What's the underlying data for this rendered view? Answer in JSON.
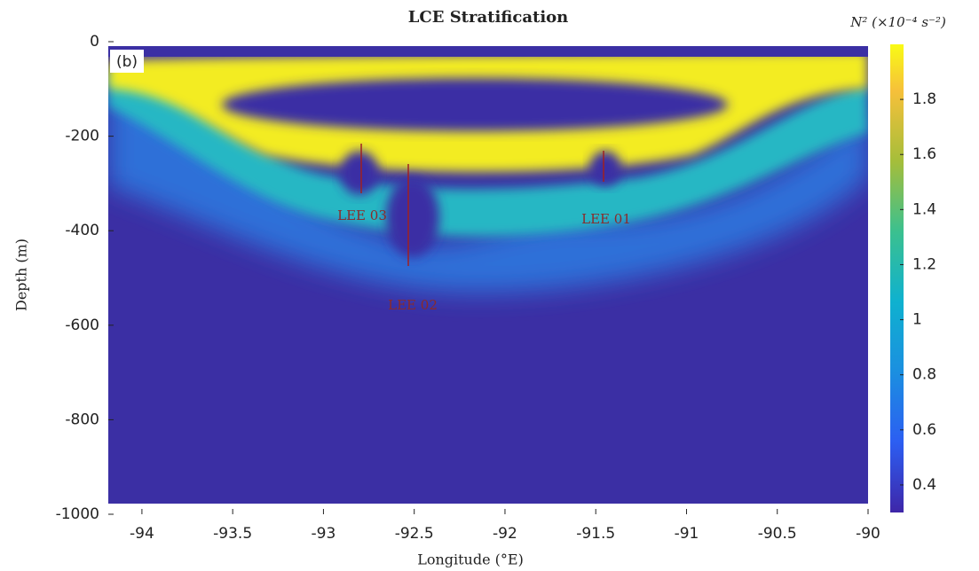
{
  "chart_data": {
    "type": "heatmap",
    "title": "LCE Stratification",
    "x_label": "Longitude (°E)",
    "y_label": "Depth (m)",
    "colorbar_label": "N² (×10⁻⁴ s⁻²)",
    "panel_label": "(b)",
    "annotations": [
      "LEE 03",
      "LEE 02",
      "LEE 01"
    ],
    "xlim": [
      -94.2,
      -90
    ],
    "xticks": [
      -94,
      -93.5,
      -93,
      -92.5,
      -92,
      -91.5,
      -91,
      -90.5,
      -90
    ],
    "ylim": [
      -1000,
      0
    ],
    "yticks": [
      -1000,
      -800,
      -600,
      -400,
      -200,
      0
    ],
    "clim": [
      0.3,
      2.0
    ],
    "cticks": [
      0.4,
      0.6,
      0.8,
      1,
      1.2,
      1.4,
      1.6,
      1.8
    ]
  }
}
